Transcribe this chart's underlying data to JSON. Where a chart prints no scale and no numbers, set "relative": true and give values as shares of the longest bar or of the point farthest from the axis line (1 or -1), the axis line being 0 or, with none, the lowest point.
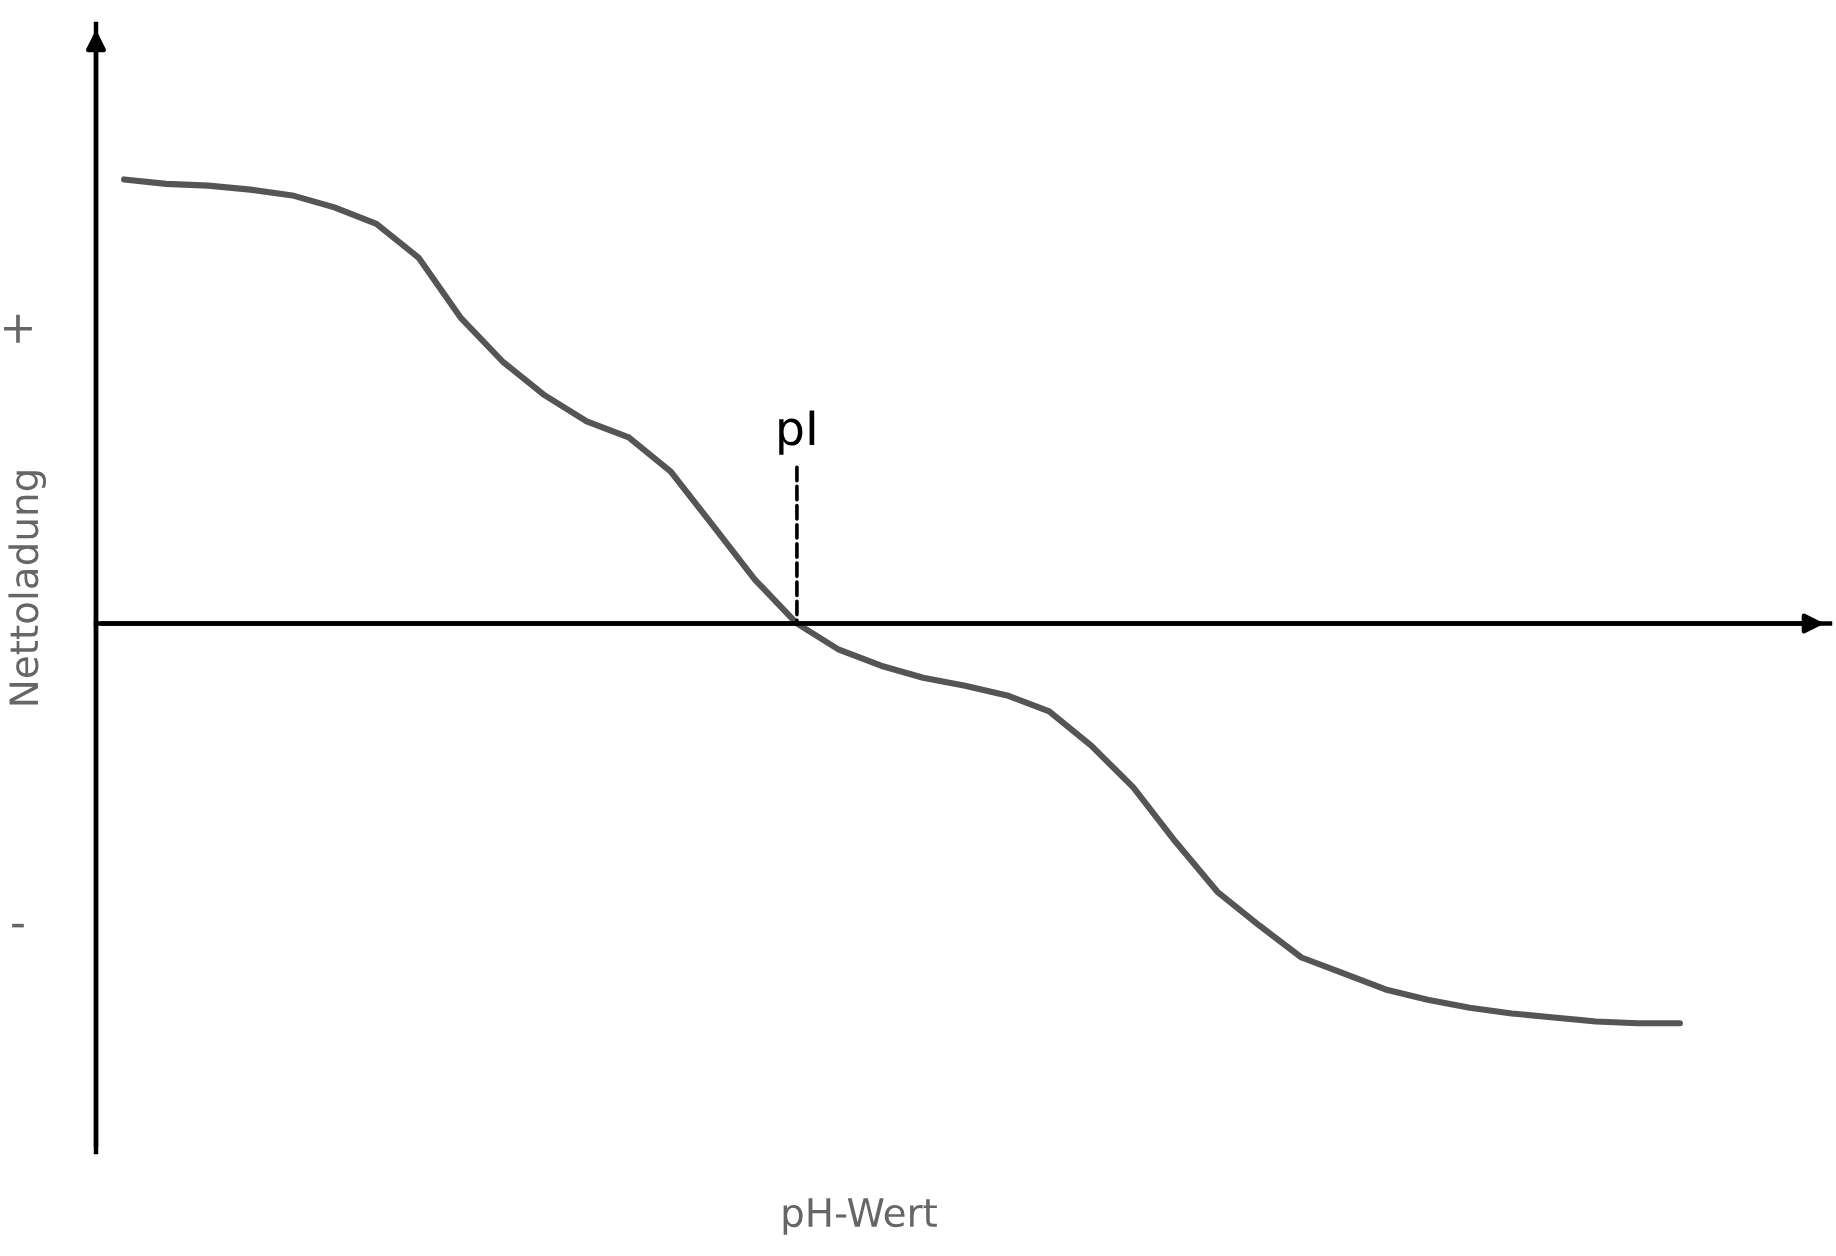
{
  "chart_data": {
    "type": "line",
    "relative": true,
    "xlabel": "pH-Wert",
    "ylabel": "Nettoladung",
    "categories": [
      null,
      null,
      null,
      null,
      null,
      null,
      null,
      null,
      null,
      null,
      null,
      null,
      null,
      null,
      null,
      null,
      null,
      null,
      null,
      null,
      null,
      null,
      null,
      null,
      null,
      null,
      null,
      null,
      null,
      null,
      null,
      null,
      null,
      null,
      null,
      null,
      null,
      null
    ],
    "series": [
      {
        "color": "#555555",
        "values": [
          1.0,
          0.99,
          0.986,
          0.977,
          0.964,
          0.937,
          0.9,
          0.824,
          0.689,
          0.59,
          0.514,
          0.455,
          0.419,
          0.342,
          0.221,
          0.099,
          0,
          -0.059,
          -0.095,
          -0.122,
          -0.14,
          -0.162,
          -0.198,
          -0.275,
          -0.369,
          -0.491,
          -0.604,
          -0.68,
          -0.752,
          -0.788,
          -0.824,
          -0.847,
          -0.865,
          -0.878,
          -0.887,
          -0.896,
          -0.9,
          -0.9
        ]
      }
    ],
    "annotations": [
      "+",
      "-",
      {
        "text": "pI",
        "y": 0
      }
    ],
    "grid": false,
    "legend": false
  }
}
